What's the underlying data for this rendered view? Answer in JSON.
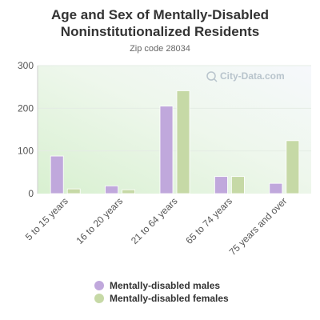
{
  "chart_data": {
    "type": "bar",
    "title_lines": [
      "Age and Sex of Mentally-Disabled",
      "Noninstitutionalized Residents"
    ],
    "subtitle": "Zip code 28034",
    "categories": [
      "5 to 15 years",
      "16 to 20 years",
      "21 to 64 years",
      "65 to 74 years",
      "75 years and over"
    ],
    "series": [
      {
        "name": "Mentally-disabled males",
        "color": "#c0a8dc",
        "values": [
          88,
          18,
          205,
          40,
          24
        ]
      },
      {
        "name": "Mentally-disabled females",
        "color": "#c6d9a6",
        "values": [
          11,
          9,
          241,
          40,
          124
        ]
      }
    ],
    "ylim": [
      0,
      300
    ],
    "yticks": [
      "0",
      "100",
      "200",
      "300"
    ],
    "grid": true,
    "legend_position": "bottom"
  },
  "watermark": "City-Data.com"
}
